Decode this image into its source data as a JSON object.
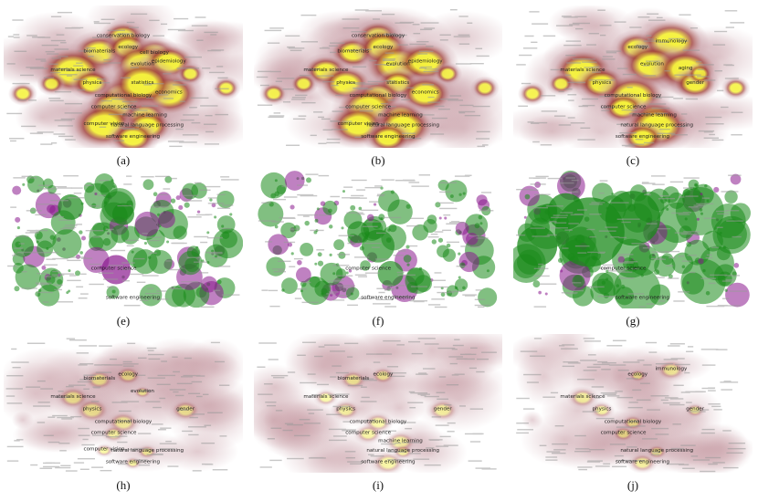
{
  "figure": {
    "panels": [
      {
        "id": "a",
        "caption": "(a)",
        "kind": "density-heatmap",
        "labels": [
          "conservation biology",
          "biomaterials",
          "ecology",
          "cell biology",
          "evolution",
          "epidemiology",
          "materials science",
          "physics",
          "computational biology",
          "economics",
          "computer science",
          "machine learning",
          "computer vision",
          "natural language processing",
          "software engineering",
          "statistics"
        ]
      },
      {
        "id": "b",
        "caption": "(b)",
        "kind": "density-heatmap",
        "labels": [
          "conservation biology",
          "biomaterials",
          "ecology",
          "evolution",
          "epidemiology",
          "materials science",
          "physics",
          "statistics",
          "computational biology",
          "economics",
          "computer science",
          "machine learning",
          "computer vision",
          "natural language processing",
          "software engineering"
        ]
      },
      {
        "id": "c",
        "caption": "(c)",
        "kind": "density-heatmap",
        "labels": [
          "ecology",
          "immunology",
          "evolution",
          "materials science",
          "physics",
          "computational biology",
          "aging",
          "gender",
          "computer science",
          "machine learning",
          "natural language processing",
          "software engineering"
        ]
      },
      {
        "id": "e",
        "caption": "(e)",
        "kind": "bubble-map",
        "labels": [
          "computer science",
          "software engineering"
        ]
      },
      {
        "id": "f",
        "caption": "(f)",
        "kind": "bubble-map",
        "labels": [
          "computer science",
          "software engineering"
        ]
      },
      {
        "id": "g",
        "caption": "(g)",
        "kind": "bubble-map",
        "labels": [
          "computer science",
          "software engineering"
        ]
      },
      {
        "id": "h",
        "caption": "(h)",
        "kind": "density-heatmap",
        "labels": [
          "ecology",
          "biomaterials",
          "evolution",
          "materials science",
          "physics",
          "computational biology",
          "computer science",
          "natural language processing",
          "computer vision",
          "software engineering",
          "gender"
        ]
      },
      {
        "id": "i",
        "caption": "(i)",
        "kind": "density-heatmap",
        "labels": [
          "biomaterials",
          "ecology",
          "materials science",
          "physics",
          "computational biology",
          "computer science",
          "machine learning",
          "natural language processing",
          "software engineering",
          "gender"
        ]
      },
      {
        "id": "j",
        "caption": "(j)",
        "kind": "density-heatmap",
        "labels": [
          "immunology",
          "ecology",
          "materials science",
          "physics",
          "computational biology",
          "computer science",
          "gender",
          "natural language processing",
          "software engineering"
        ]
      }
    ],
    "colors": {
      "background": "#ffffff",
      "heat_low": "#c9a0a8",
      "heat_mid": "#a0403a",
      "heat_high": "#f5f23c",
      "bubble_green": "#1a8a1a",
      "bubble_purple": "#8a1a8e",
      "minor_text": "#9a9a9a",
      "label_text": "#222222"
    }
  }
}
